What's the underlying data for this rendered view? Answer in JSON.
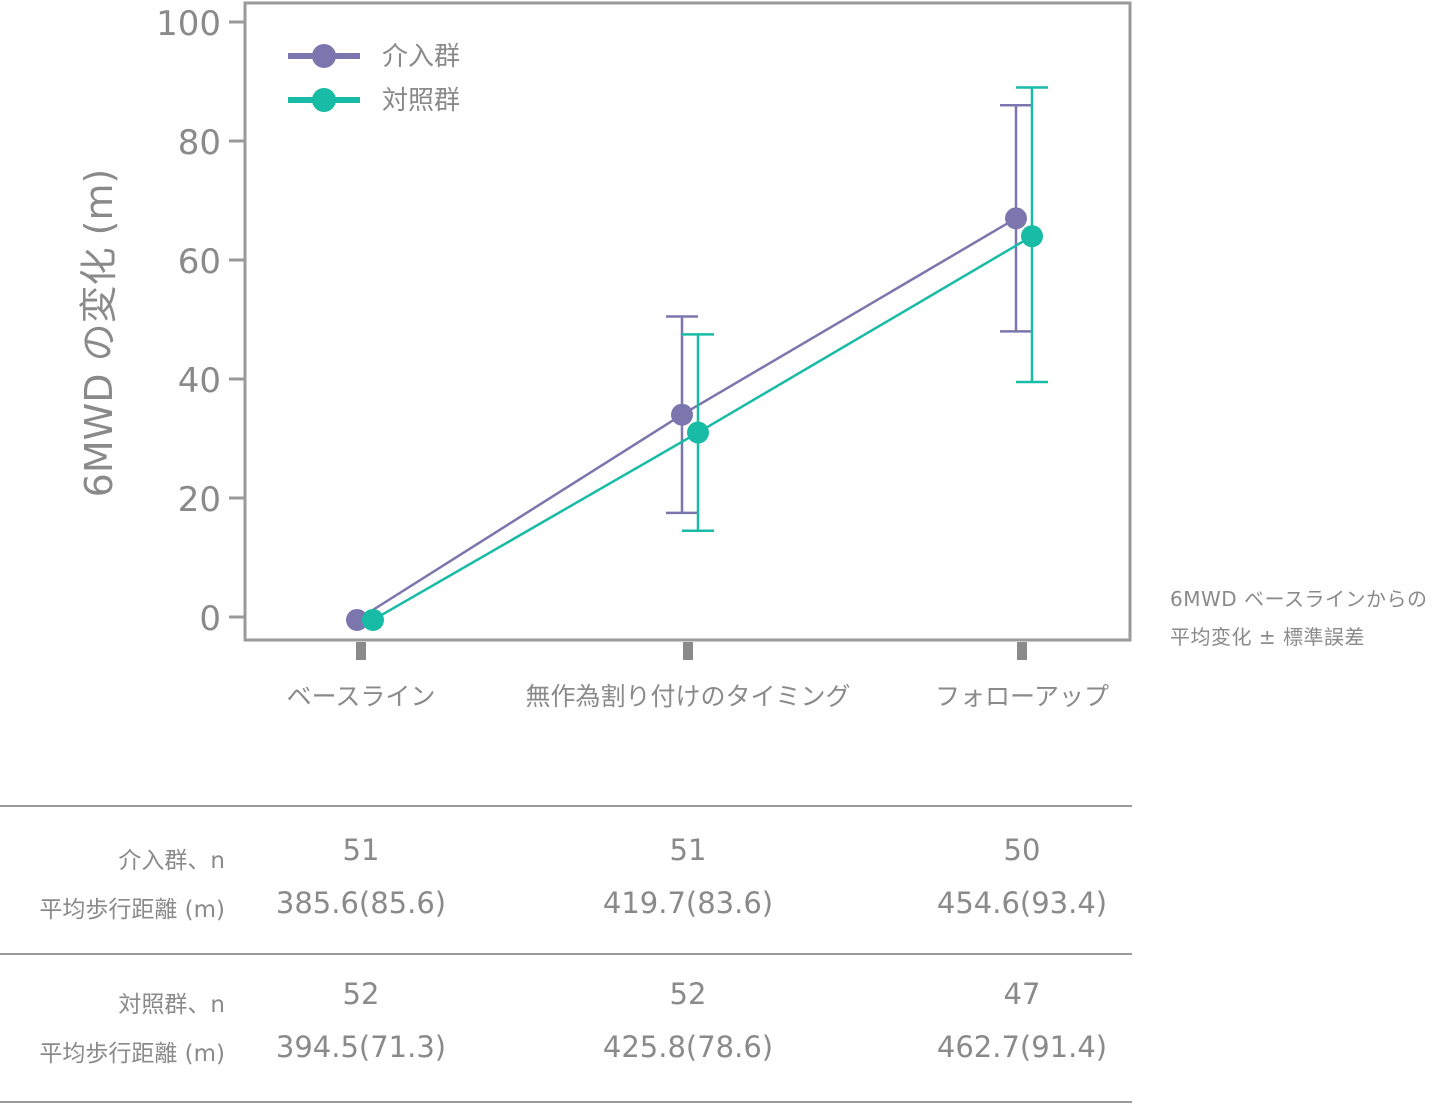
{
  "chart_data": {
    "type": "line",
    "ylabel": "6MWD の変化 (m)",
    "ylim": [
      0,
      100
    ],
    "yticks": [
      0,
      20,
      40,
      60,
      80,
      100
    ],
    "categories": [
      "ベースライン",
      "無作為割り付けのタイミング",
      "フォローアップ"
    ],
    "legend_position": "top-left",
    "grid": false,
    "series": [
      {
        "name": "介入群",
        "color": "#7b76ad",
        "values": [
          -0.5,
          34,
          67
        ],
        "error_low": [
          null,
          17.5,
          48
        ],
        "error_high": [
          null,
          50.5,
          86
        ]
      },
      {
        "name": "対照群",
        "color": "#17bba6",
        "values": [
          -0.5,
          31,
          64
        ],
        "error_low": [
          null,
          14.5,
          39.5
        ],
        "error_high": [
          null,
          47.5,
          89
        ]
      }
    ]
  },
  "note": {
    "line1": "6MWD ベースラインからの",
    "line2": "平均変化 ± 標準誤差"
  },
  "table": {
    "rows": [
      {
        "label_n": "介入群、n",
        "label_mean": "平均歩行距離 (m)",
        "n": [
          "51",
          "51",
          "50"
        ],
        "mean": [
          "385.6(85.6)",
          "419.7(83.6)",
          "454.6(93.4)"
        ]
      },
      {
        "label_n": "対照群、n",
        "label_mean": "平均歩行距離 (m)",
        "n": [
          "52",
          "52",
          "47"
        ],
        "mean": [
          "394.5(71.3)",
          "425.8(78.6)",
          "462.7(91.4)"
        ]
      }
    ]
  }
}
